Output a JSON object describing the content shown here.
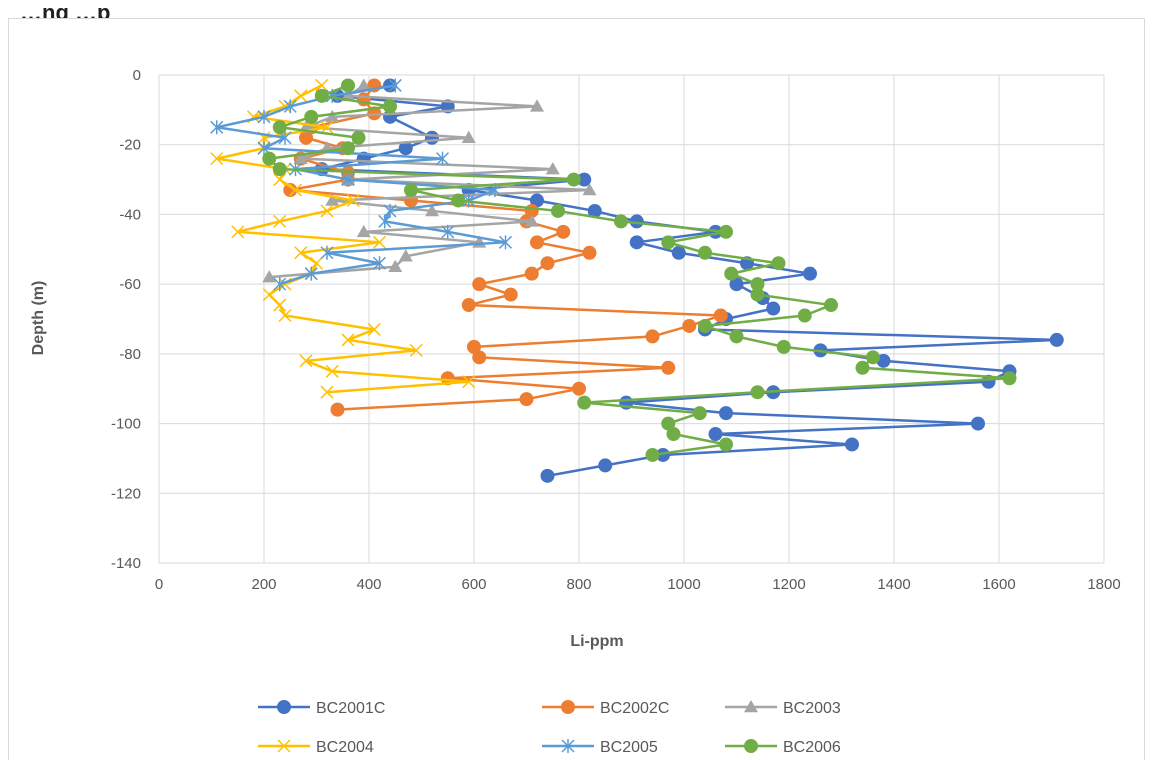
{
  "page": {
    "title": "…ng                                                        …p"
  },
  "chart_data": {
    "type": "scatter",
    "xlabel": "Li-ppm",
    "ylabel": "Depth (m)",
    "xlim": [
      0,
      1800
    ],
    "ylim": [
      -140,
      0
    ],
    "xticks": [
      0,
      200,
      400,
      600,
      800,
      1000,
      1200,
      1400,
      1600,
      1800
    ],
    "yticks": [
      0,
      -20,
      -40,
      -60,
      -80,
      -100,
      -120,
      -140
    ],
    "grid": "vertical-and-horizontal",
    "legend_position": "bottom",
    "series": [
      {
        "name": "BC2001C",
        "color": "#4472C4",
        "marker": "circle",
        "points": [
          [
            440,
            -3
          ],
          [
            340,
            -6
          ],
          [
            550,
            -9
          ],
          [
            440,
            -12
          ],
          [
            520,
            -18
          ],
          [
            470,
            -21
          ],
          [
            390,
            -24
          ],
          [
            310,
            -27
          ],
          [
            810,
            -30
          ],
          [
            590,
            -33
          ],
          [
            720,
            -36
          ],
          [
            830,
            -39
          ],
          [
            910,
            -42
          ],
          [
            1060,
            -45
          ],
          [
            910,
            -48
          ],
          [
            990,
            -51
          ],
          [
            1120,
            -54
          ],
          [
            1240,
            -57
          ],
          [
            1100,
            -60
          ],
          [
            1150,
            -64
          ],
          [
            1170,
            -67
          ],
          [
            1080,
            -70
          ],
          [
            1040,
            -73
          ],
          [
            1710,
            -76
          ],
          [
            1260,
            -79
          ],
          [
            1380,
            -82
          ],
          [
            1620,
            -85
          ],
          [
            1580,
            -88
          ],
          [
            1170,
            -91
          ],
          [
            890,
            -94
          ],
          [
            1080,
            -97
          ],
          [
            1560,
            -100
          ],
          [
            1060,
            -103
          ],
          [
            1320,
            -106
          ],
          [
            960,
            -109
          ],
          [
            850,
            -112
          ],
          [
            740,
            -115
          ]
        ]
      },
      {
        "name": "BC2002C",
        "color": "#ED7D31",
        "marker": "circle",
        "points": [
          [
            410,
            -3
          ],
          [
            390,
            -7
          ],
          [
            410,
            -11
          ],
          [
            290,
            -15
          ],
          [
            280,
            -18
          ],
          [
            350,
            -21
          ],
          [
            270,
            -24
          ],
          [
            360,
            -28
          ],
          [
            360,
            -30
          ],
          [
            250,
            -33
          ],
          [
            480,
            -36
          ],
          [
            710,
            -39
          ],
          [
            700,
            -42
          ],
          [
            770,
            -45
          ],
          [
            720,
            -48
          ],
          [
            820,
            -51
          ],
          [
            740,
            -54
          ],
          [
            710,
            -57
          ],
          [
            610,
            -60
          ],
          [
            670,
            -63
          ],
          [
            590,
            -66
          ],
          [
            1070,
            -69
          ],
          [
            1010,
            -72
          ],
          [
            940,
            -75
          ],
          [
            600,
            -78
          ],
          [
            610,
            -81
          ],
          [
            970,
            -84
          ],
          [
            550,
            -87
          ],
          [
            800,
            -90
          ],
          [
            700,
            -93
          ],
          [
            340,
            -96
          ]
        ]
      },
      {
        "name": "BC2003",
        "color": "#A5A5A5",
        "marker": "triangle",
        "points": [
          [
            390,
            -3
          ],
          [
            360,
            -6
          ],
          [
            720,
            -9
          ],
          [
            330,
            -12
          ],
          [
            280,
            -15
          ],
          [
            590,
            -18
          ],
          [
            320,
            -21
          ],
          [
            270,
            -24
          ],
          [
            750,
            -27
          ],
          [
            360,
            -30
          ],
          [
            820,
            -33
          ],
          [
            330,
            -36
          ],
          [
            520,
            -39
          ],
          [
            710,
            -42
          ],
          [
            390,
            -45
          ],
          [
            610,
            -48
          ],
          [
            470,
            -52
          ],
          [
            450,
            -55
          ],
          [
            210,
            -58
          ]
        ]
      },
      {
        "name": "BC2004",
        "color": "#FFC000",
        "marker": "x",
        "points": [
          [
            310,
            -3
          ],
          [
            270,
            -6
          ],
          [
            240,
            -9
          ],
          [
            180,
            -12
          ],
          [
            320,
            -15
          ],
          [
            200,
            -18
          ],
          [
            200,
            -21
          ],
          [
            110,
            -24
          ],
          [
            240,
            -27
          ],
          [
            230,
            -30
          ],
          [
            260,
            -33
          ],
          [
            370,
            -36
          ],
          [
            320,
            -39
          ],
          [
            230,
            -42
          ],
          [
            150,
            -45
          ],
          [
            420,
            -48
          ],
          [
            270,
            -51
          ],
          [
            300,
            -54
          ],
          [
            290,
            -57
          ],
          [
            240,
            -60
          ],
          [
            210,
            -63
          ],
          [
            230,
            -66
          ],
          [
            240,
            -69
          ],
          [
            410,
            -73
          ],
          [
            360,
            -76
          ],
          [
            490,
            -79
          ],
          [
            280,
            -82
          ],
          [
            330,
            -85
          ],
          [
            590,
            -88
          ],
          [
            320,
            -91
          ]
        ]
      },
      {
        "name": "BC2005",
        "color": "#5B9BD5",
        "marker": "asterisk",
        "points": [
          [
            450,
            -3
          ],
          [
            330,
            -6
          ],
          [
            250,
            -9
          ],
          [
            200,
            -12
          ],
          [
            110,
            -15
          ],
          [
            240,
            -18
          ],
          [
            200,
            -21
          ],
          [
            540,
            -24
          ],
          [
            260,
            -27
          ],
          [
            360,
            -30
          ],
          [
            640,
            -33
          ],
          [
            590,
            -36
          ],
          [
            440,
            -39
          ],
          [
            430,
            -42
          ],
          [
            550,
            -45
          ],
          [
            660,
            -48
          ],
          [
            320,
            -51
          ],
          [
            420,
            -54
          ],
          [
            290,
            -57
          ],
          [
            230,
            -60
          ]
        ]
      },
      {
        "name": "BC2006",
        "color": "#70AD47",
        "marker": "circle",
        "points": [
          [
            360,
            -3
          ],
          [
            310,
            -6
          ],
          [
            440,
            -9
          ],
          [
            290,
            -12
          ],
          [
            230,
            -15
          ],
          [
            380,
            -18
          ],
          [
            360,
            -21
          ],
          [
            210,
            -24
          ],
          [
            230,
            -27
          ],
          [
            790,
            -30
          ],
          [
            480,
            -33
          ],
          [
            570,
            -36
          ],
          [
            760,
            -39
          ],
          [
            880,
            -42
          ],
          [
            1080,
            -45
          ],
          [
            970,
            -48
          ],
          [
            1040,
            -51
          ],
          [
            1180,
            -54
          ],
          [
            1090,
            -57
          ],
          [
            1140,
            -60
          ],
          [
            1140,
            -63
          ],
          [
            1280,
            -66
          ],
          [
            1230,
            -69
          ],
          [
            1040,
            -72
          ],
          [
            1100,
            -75
          ],
          [
            1190,
            -78
          ],
          [
            1360,
            -81
          ],
          [
            1340,
            -84
          ],
          [
            1620,
            -87
          ],
          [
            1140,
            -91
          ],
          [
            810,
            -94
          ],
          [
            1030,
            -97
          ],
          [
            970,
            -100
          ],
          [
            980,
            -103
          ],
          [
            1080,
            -106
          ],
          [
            940,
            -109
          ]
        ]
      }
    ]
  }
}
